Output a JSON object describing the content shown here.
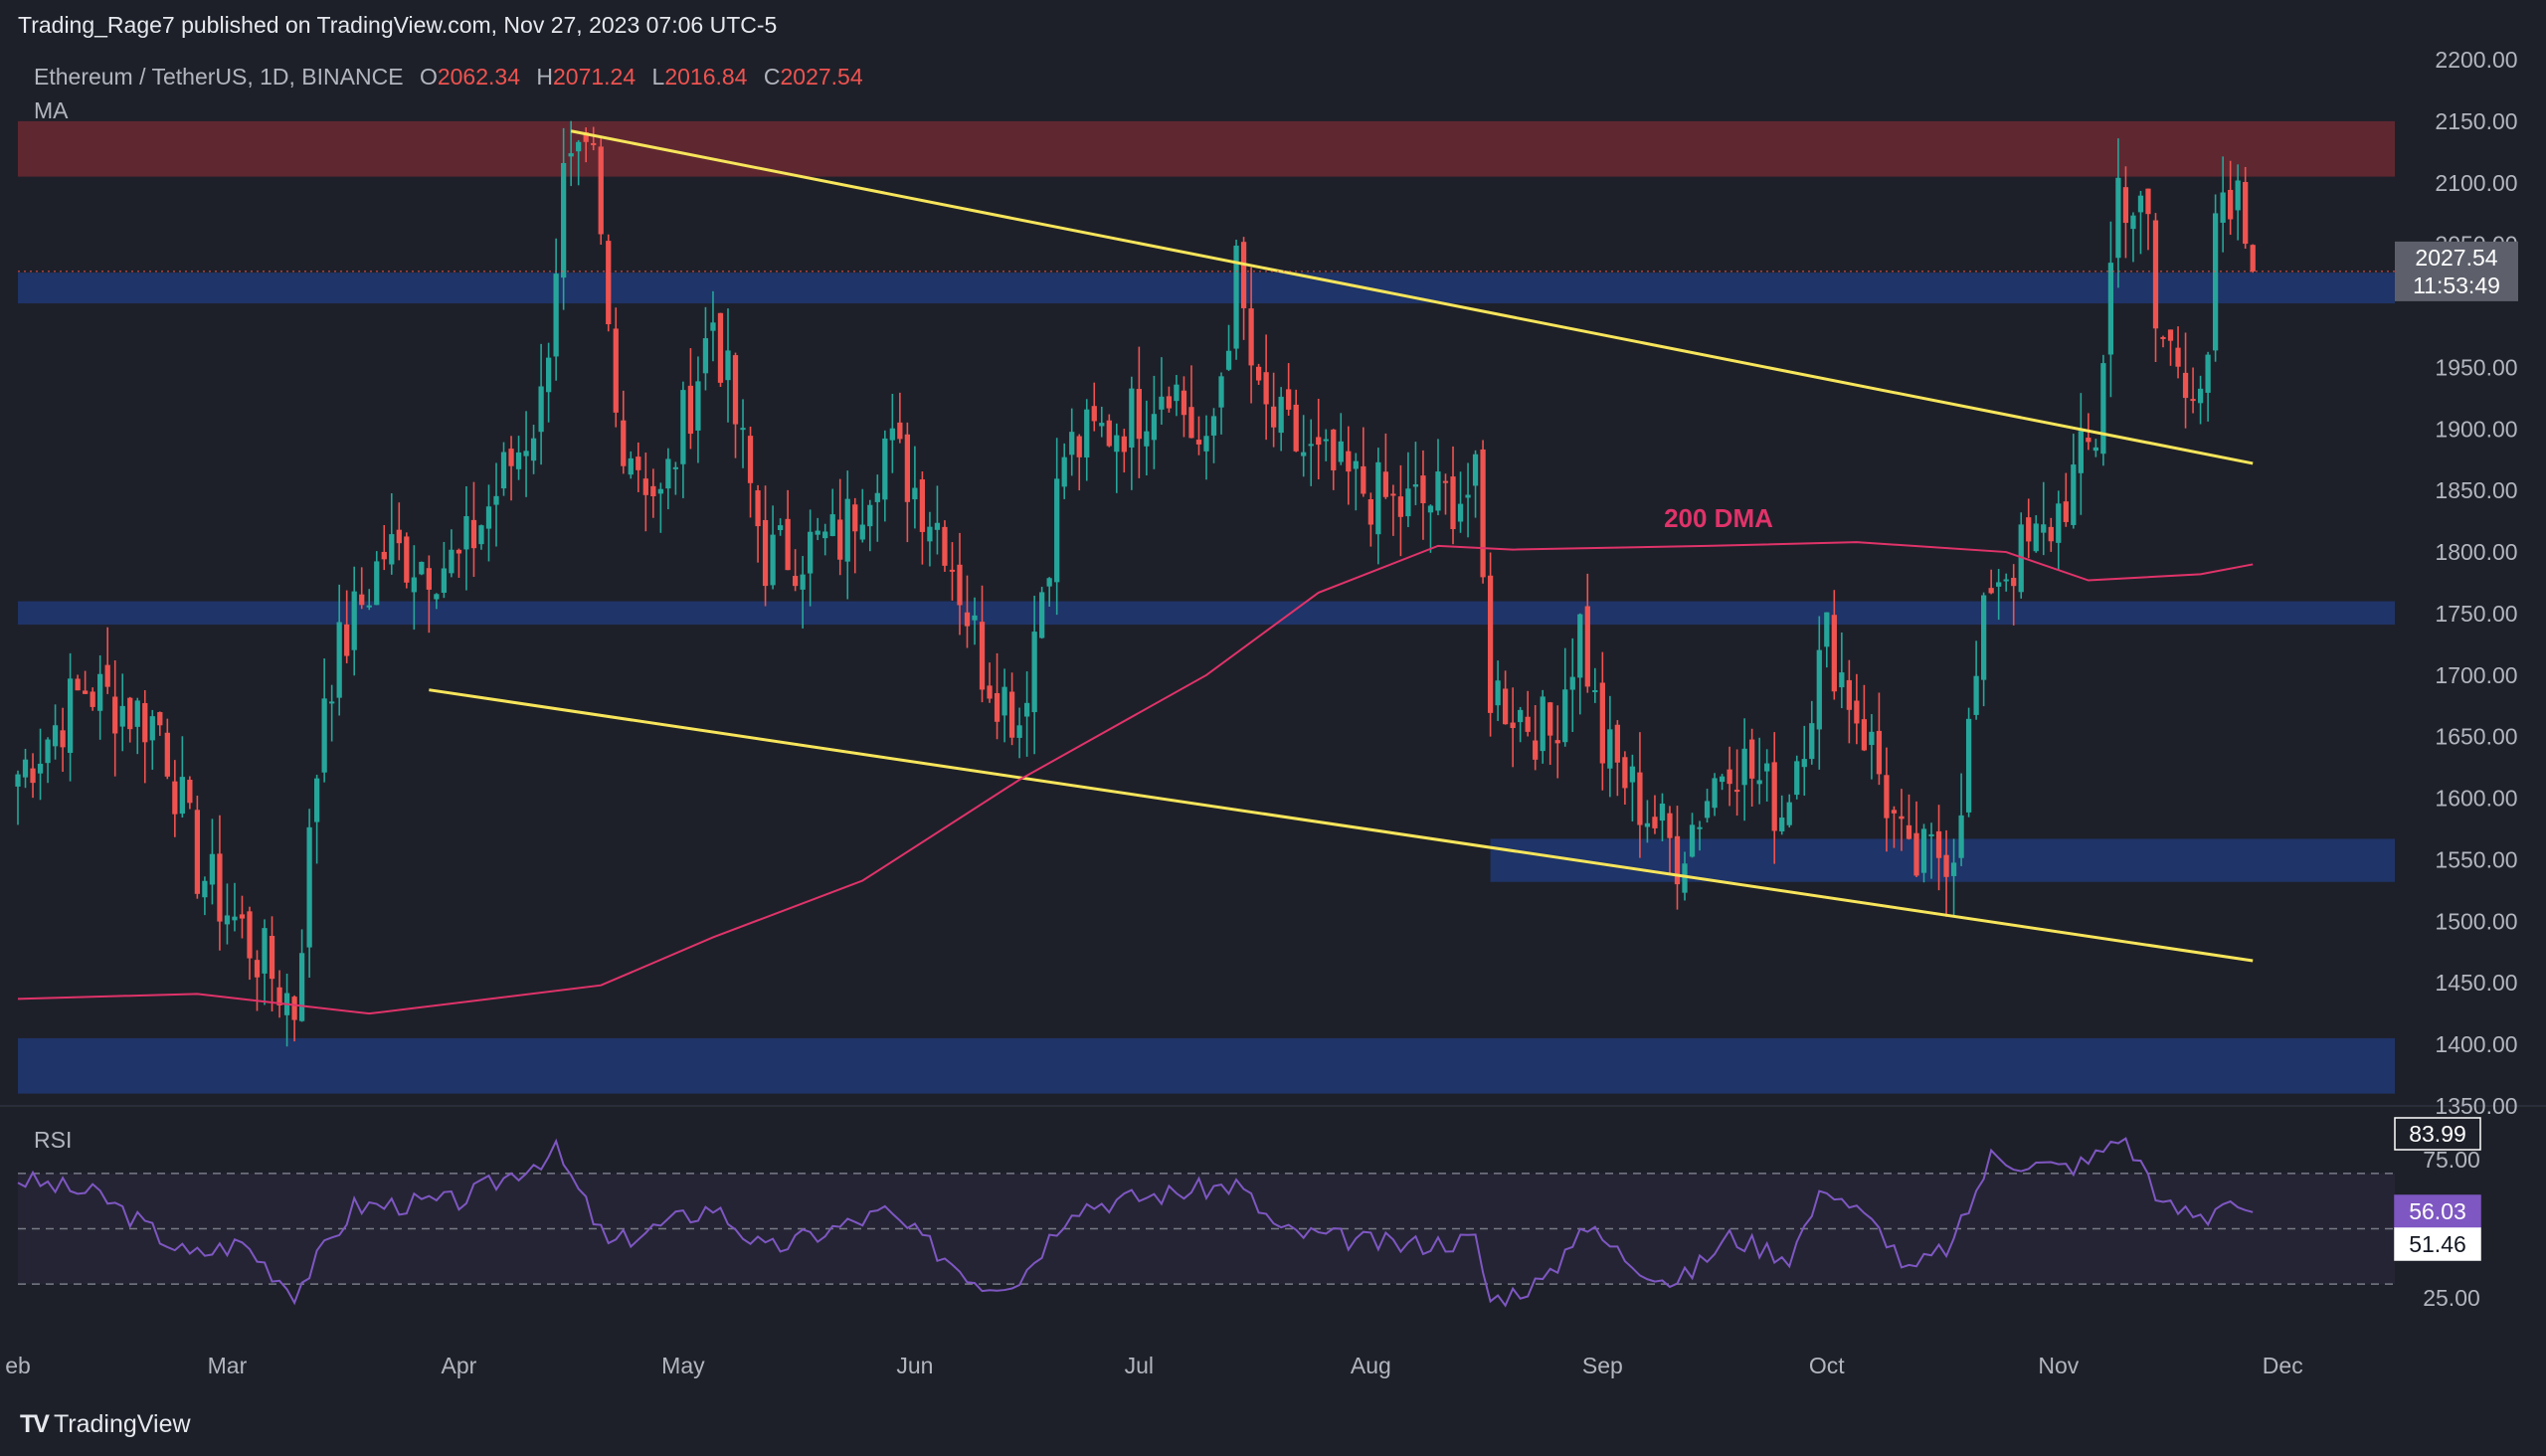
{
  "header": {
    "publisher": "Trading_Rage7 published on TradingView.com, Nov 27, 2023 07:06 UTC-5"
  },
  "legend": {
    "symbol": "Ethereum / TetherUS, 1D, BINANCE",
    "o_label": "O",
    "o_value": "2062.34",
    "h_label": "H",
    "h_value": "2071.24",
    "l_label": "L",
    "l_value": "2016.84",
    "c_label": "C",
    "c_value": "2027.54",
    "indicator": "MA"
  },
  "price_tag": {
    "value": "2027.54",
    "countdown": "11:53:49"
  },
  "rsi": {
    "label": "RSI",
    "ticks": [
      "75.00",
      "25.00"
    ],
    "tags": {
      "high": "83.99",
      "current": "56.03",
      "ma": "51.46"
    },
    "levels": [
      70,
      50,
      30
    ]
  },
  "annotations": {
    "dma_label": "200 DMA"
  },
  "brand": {
    "name": "TradingView"
  },
  "colors": {
    "background": "#1e2029",
    "up": "#26a69a",
    "down": "#ef5350",
    "trendline": "#f7e55b",
    "dma": "#e0336a",
    "support_zone": "#1f3a78",
    "resistance_zone": "#6b2a33",
    "rsi_line": "#7e57c2"
  },
  "chart_data": {
    "type": "candlestick",
    "title": "Ethereum / TetherUS, 1D, BINANCE",
    "y_ticks": [
      "2200.00",
      "2150.00",
      "2100.00",
      "2050.00",
      "1950.00",
      "1900.00",
      "1850.00",
      "1800.00",
      "1750.00",
      "1700.00",
      "1650.00",
      "1600.00",
      "1550.00",
      "1500.00",
      "1450.00",
      "1400.00",
      "1350.00"
    ],
    "ylim": [
      1350,
      2200
    ],
    "x_ticks": [
      "eb",
      "Mar",
      "Apr",
      "May",
      "Jun",
      "Jul",
      "Aug",
      "Sep",
      "Oct",
      "Nov",
      "Dec"
    ],
    "x_tick_dates": [
      "2023-02-01",
      "2023-03-01",
      "2023-04-01",
      "2023-05-01",
      "2023-06-01",
      "2023-07-01",
      "2023-08-01",
      "2023-09-01",
      "2023-10-01",
      "2023-11-01",
      "2023-12-01"
    ],
    "xlim": [
      "2023-02-01",
      "2023-12-16"
    ],
    "zones": [
      {
        "kind": "resistance",
        "from": "2023-02-01",
        "to": "2023-12-16",
        "low": 2105,
        "high": 2150
      },
      {
        "kind": "support",
        "from": "2023-02-01",
        "to": "2023-12-16",
        "low": 2002,
        "high": 2027
      },
      {
        "kind": "support",
        "from": "2023-02-01",
        "to": "2023-12-16",
        "low": 1741,
        "high": 1760
      },
      {
        "kind": "support",
        "from": "2023-08-17",
        "to": "2023-12-16",
        "low": 1532,
        "high": 1567
      },
      {
        "kind": "support",
        "from": "2023-02-01",
        "to": "2023-12-16",
        "low": 1360,
        "high": 1405
      }
    ],
    "trendlines": [
      {
        "from": [
          "2023-04-16",
          2142
        ],
        "to": [
          "2023-11-27",
          1872
        ]
      },
      {
        "from": [
          "2023-03-28",
          1688
        ],
        "to": [
          "2023-11-27",
          1468
        ]
      }
    ],
    "ma_200": [
      [
        "2023-02-01",
        1437
      ],
      [
        "2023-02-25",
        1441
      ],
      [
        "2023-03-20",
        1425
      ],
      [
        "2023-04-20",
        1448
      ],
      [
        "2023-05-05",
        1487
      ],
      [
        "2023-05-25",
        1533
      ],
      [
        "2023-06-15",
        1615
      ],
      [
        "2023-07-10",
        1700
      ],
      [
        "2023-07-25",
        1767
      ],
      [
        "2023-08-10",
        1805
      ],
      [
        "2023-08-20",
        1802
      ],
      [
        "2023-09-15",
        1805
      ],
      [
        "2023-10-05",
        1808
      ],
      [
        "2023-10-25",
        1800
      ],
      [
        "2023-11-05",
        1777
      ],
      [
        "2023-11-20",
        1782
      ],
      [
        "2023-11-27",
        1790
      ]
    ],
    "key_points": [
      [
        "2023-02-01",
        1620
      ],
      [
        "2023-02-10",
        1690
      ],
      [
        "2023-02-20",
        1660
      ],
      [
        "2023-02-25",
        1545
      ],
      [
        "2023-03-10",
        1430
      ],
      [
        "2023-03-14",
        1690
      ],
      [
        "2023-03-22",
        1800
      ],
      [
        "2023-04-01",
        1790
      ],
      [
        "2023-04-12",
        1920
      ],
      [
        "2023-04-15",
        2100
      ],
      [
        "2023-04-19",
        2110
      ],
      [
        "2023-04-22",
        1910
      ],
      [
        "2023-04-28",
        1840
      ],
      [
        "2023-05-05",
        1990
      ],
      [
        "2023-05-12",
        1795
      ],
      [
        "2023-05-22",
        1810
      ],
      [
        "2023-05-28",
        1890
      ],
      [
        "2023-06-05",
        1815
      ],
      [
        "2023-06-10",
        1710
      ],
      [
        "2023-06-15",
        1665
      ],
      [
        "2023-06-21",
        1880
      ],
      [
        "2023-06-30",
        1910
      ],
      [
        "2023-07-05",
        1945
      ],
      [
        "2023-07-10",
        1870
      ],
      [
        "2023-07-14",
        2025
      ],
      [
        "2023-07-17",
        1915
      ],
      [
        "2023-07-25",
        1870
      ],
      [
        "2023-08-05",
        1835
      ],
      [
        "2023-08-15",
        1850
      ],
      [
        "2023-08-17",
        1690
      ],
      [
        "2023-08-25",
        1650
      ],
      [
        "2023-08-29",
        1740
      ],
      [
        "2023-09-01",
        1640
      ],
      [
        "2023-09-11",
        1555
      ],
      [
        "2023-09-18",
        1640
      ],
      [
        "2023-09-25",
        1590
      ],
      [
        "2023-10-01",
        1730
      ],
      [
        "2023-10-07",
        1640
      ],
      [
        "2023-10-12",
        1540
      ],
      [
        "2023-10-18",
        1565
      ],
      [
        "2023-10-23",
        1780
      ],
      [
        "2023-10-30",
        1810
      ],
      [
        "2023-11-06",
        1895
      ],
      [
        "2023-11-09",
        2100
      ],
      [
        "2023-11-13",
        2060
      ],
      [
        "2023-11-14",
        1980
      ],
      [
        "2023-11-18",
        1950
      ],
      [
        "2023-11-21",
        1935
      ],
      [
        "2023-11-22",
        2060
      ],
      [
        "2023-11-25",
        2080
      ],
      [
        "2023-11-27",
        2028
      ]
    ],
    "rsi_points": [
      [
        "2023-02-01",
        68
      ],
      [
        "2023-02-12",
        62
      ],
      [
        "2023-02-24",
        40
      ],
      [
        "2023-03-03",
        45
      ],
      [
        "2023-03-10",
        27
      ],
      [
        "2023-03-18",
        58
      ],
      [
        "2023-04-01",
        60
      ],
      [
        "2023-04-14",
        78
      ],
      [
        "2023-04-21",
        44
      ],
      [
        "2023-05-05",
        58
      ],
      [
        "2023-05-12",
        42
      ],
      [
        "2023-05-28",
        56
      ],
      [
        "2023-06-10",
        30
      ],
      [
        "2023-06-15",
        32
      ],
      [
        "2023-06-22",
        58
      ],
      [
        "2023-07-03",
        62
      ],
      [
        "2023-07-14",
        66
      ],
      [
        "2023-07-20",
        49
      ],
      [
        "2023-08-05",
        44
      ],
      [
        "2023-08-15",
        46
      ],
      [
        "2023-08-17",
        24
      ],
      [
        "2023-08-25",
        32
      ],
      [
        "2023-08-29",
        52
      ],
      [
        "2023-09-05",
        38
      ],
      [
        "2023-09-11",
        30
      ],
      [
        "2023-09-18",
        47
      ],
      [
        "2023-09-26",
        40
      ],
      [
        "2023-10-01",
        66
      ],
      [
        "2023-10-09",
        47
      ],
      [
        "2023-10-12",
        34
      ],
      [
        "2023-10-18",
        45
      ],
      [
        "2023-10-23",
        76
      ],
      [
        "2023-11-01",
        72
      ],
      [
        "2023-11-05",
        74
      ],
      [
        "2023-11-09",
        84
      ],
      [
        "2023-11-13",
        70
      ],
      [
        "2023-11-15",
        58
      ],
      [
        "2023-11-21",
        54
      ],
      [
        "2023-11-23",
        62
      ],
      [
        "2023-11-27",
        56
      ]
    ]
  }
}
